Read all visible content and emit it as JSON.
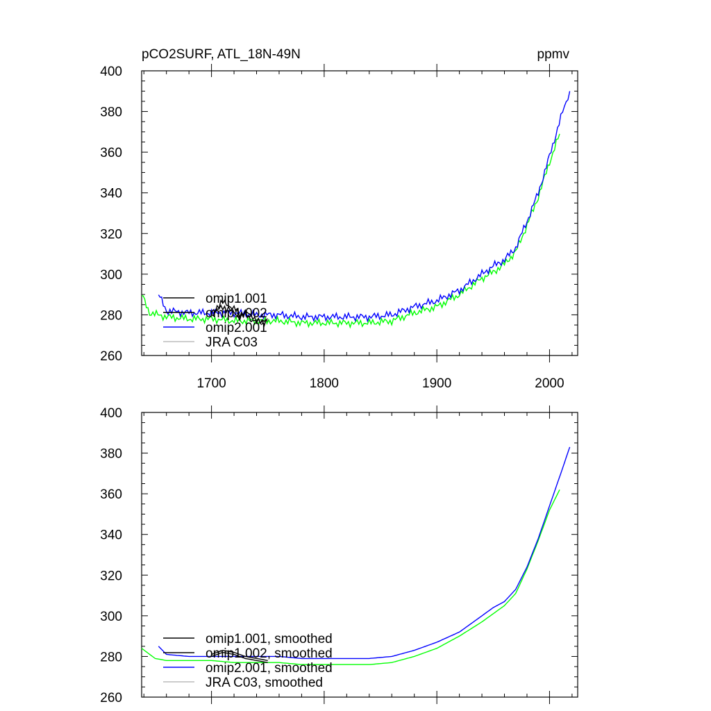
{
  "figure": {
    "title_left": "pCO2SURF, ATL_18N-49N",
    "title_right": "ppmv"
  },
  "chart_data": [
    {
      "type": "line",
      "title": "pCO2SURF, ATL_18N-49N",
      "units": "ppmv",
      "xlim": [
        1638,
        2025
      ],
      "ylim": [
        260,
        400
      ],
      "yticks": [
        260,
        280,
        300,
        320,
        340,
        360,
        380,
        400
      ],
      "xticks": [
        1700,
        1800,
        1900,
        2000
      ],
      "xtick_labels_shown": true,
      "series": [
        {
          "name": "omip1.001",
          "color": "#000000",
          "x": [
            1700,
            1705,
            1710,
            1715,
            1720,
            1725,
            1730,
            1735,
            1740,
            1745,
            1750
          ],
          "y": [
            281,
            284,
            286,
            285,
            283,
            280,
            282,
            279,
            278,
            276,
            278
          ]
        },
        {
          "name": "omip1.002",
          "color": "#000000",
          "x": [
            1700,
            1705,
            1710,
            1715,
            1720,
            1725,
            1730,
            1735,
            1740,
            1745,
            1750
          ],
          "y": [
            280,
            282,
            284,
            283,
            281,
            279,
            280,
            278,
            277,
            276,
            277
          ]
        },
        {
          "name": "omip2.001",
          "color": "#0000ff",
          "x": [
            1653,
            1660,
            1680,
            1700,
            1720,
            1740,
            1760,
            1780,
            1800,
            1820,
            1840,
            1860,
            1880,
            1900,
            1920,
            1940,
            1950,
            1960,
            1970,
            1980,
            1990,
            2000,
            2010,
            2018
          ],
          "y": [
            290,
            282,
            281,
            281,
            281,
            280,
            280,
            279,
            279,
            279,
            279,
            280,
            284,
            287,
            292,
            300,
            304,
            307,
            313,
            326,
            340,
            358,
            377,
            390
          ]
        },
        {
          "name": "JRA C03",
          "color": "#00ff00",
          "x": [
            1638,
            1645,
            1660,
            1680,
            1700,
            1720,
            1740,
            1760,
            1780,
            1800,
            1820,
            1840,
            1860,
            1880,
            1900,
            1920,
            1940,
            1950,
            1960,
            1970,
            1980,
            1990,
            2000,
            2009
          ],
          "y": [
            290,
            281,
            279,
            278,
            278,
            277,
            277,
            277,
            276,
            276,
            276,
            276,
            277,
            281,
            284,
            290,
            298,
            301,
            305,
            311,
            324,
            338,
            355,
            369
          ]
        }
      ],
      "legend": {
        "placement": "lower-left",
        "entries": [
          "omip1.001",
          "omip1.002",
          "omip2.001",
          "JRA C03"
        ]
      }
    },
    {
      "type": "line",
      "xlim": [
        1638,
        2025
      ],
      "ylim": [
        260,
        400
      ],
      "yticks": [
        260,
        280,
        300,
        320,
        340,
        360,
        380,
        400
      ],
      "xticks": [
        1700,
        1800,
        1900,
        2000
      ],
      "xtick_labels_shown": false,
      "series": [
        {
          "name": "omip1.001, smoothed",
          "color": "#000000",
          "x": [
            1700,
            1710,
            1720,
            1730,
            1740,
            1750
          ],
          "y": [
            281,
            283,
            282,
            280,
            279,
            278
          ]
        },
        {
          "name": "omip1.002, smoothed",
          "color": "#000000",
          "x": [
            1700,
            1710,
            1720,
            1730,
            1740,
            1750
          ],
          "y": [
            280,
            282,
            281,
            279,
            278,
            277
          ]
        },
        {
          "name": "omip2.001, smoothed",
          "color": "#0000ff",
          "x": [
            1653,
            1660,
            1680,
            1700,
            1720,
            1740,
            1760,
            1780,
            1800,
            1820,
            1840,
            1860,
            1880,
            1900,
            1920,
            1940,
            1950,
            1960,
            1970,
            1980,
            1990,
            2000,
            2010,
            2018
          ],
          "y": [
            285,
            281,
            280,
            280,
            280,
            280,
            280,
            279,
            279,
            279,
            279,
            280,
            283,
            287,
            292,
            300,
            304,
            307,
            313,
            324,
            338,
            354,
            370,
            383
          ]
        },
        {
          "name": "JRA C03, smoothed",
          "color": "#00ff00",
          "x": [
            1638,
            1650,
            1660,
            1680,
            1700,
            1720,
            1740,
            1760,
            1780,
            1800,
            1820,
            1840,
            1860,
            1880,
            1900,
            1920,
            1940,
            1950,
            1960,
            1970,
            1980,
            1990,
            2000,
            2009
          ],
          "y": [
            284,
            279,
            278,
            278,
            278,
            277,
            277,
            277,
            276,
            276,
            276,
            276,
            277,
            280,
            284,
            290,
            297,
            301,
            305,
            311,
            323,
            337,
            352,
            362
          ]
        }
      ],
      "legend": {
        "placement": "lower-left",
        "entries": [
          "omip1.001, smoothed",
          "omip1.002, smoothed",
          "omip2.001, smoothed",
          "JRA C03, smoothed"
        ]
      }
    }
  ]
}
